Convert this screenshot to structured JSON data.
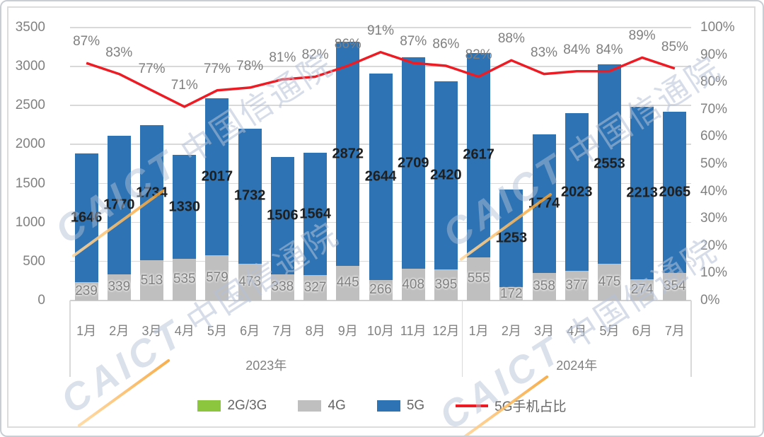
{
  "watermark": {
    "brand": "CAICT",
    "name": "中国信通院"
  },
  "legend": [
    {
      "label": "2G/3G",
      "color": "#8CC63F",
      "type": "box"
    },
    {
      "label": "4G",
      "color": "#BFBFBF",
      "type": "box"
    },
    {
      "label": "5G",
      "color": "#2E74B5",
      "type": "box"
    },
    {
      "label": "5G手机占比",
      "color": "#ED1C24",
      "type": "line"
    }
  ],
  "chart_data": {
    "type": "bar",
    "subtype": "stacked-column-with-line",
    "categories": [
      "1月",
      "2月",
      "3月",
      "4月",
      "5月",
      "6月",
      "7月",
      "8月",
      "9月",
      "10月",
      "11月",
      "12月",
      "1月",
      "2月",
      "3月",
      "4月",
      "5月",
      "6月",
      "7月"
    ],
    "category_groups": [
      {
        "label": "2023年",
        "count": 12
      },
      {
        "label": "2024年",
        "count": 7
      }
    ],
    "series": [
      {
        "name": "2G/3G",
        "color": "#8CC63F",
        "values": [
          0,
          0,
          0,
          0,
          0,
          0,
          0,
          0,
          0,
          0,
          0,
          0,
          0,
          0,
          0,
          0,
          0,
          0,
          0
        ],
        "labels_visible": false
      },
      {
        "name": "4G",
        "color": "#BFBFBF",
        "values": [
          239,
          339,
          513,
          535,
          579,
          473,
          338,
          327,
          445,
          266,
          408,
          395,
          555,
          172,
          358,
          377,
          475,
          274,
          354
        ]
      },
      {
        "name": "5G",
        "color": "#2E74B5",
        "values": [
          1646,
          1770,
          1734,
          1330,
          2017,
          1732,
          1506,
          1564,
          2872,
          2644,
          2709,
          2420,
          2617,
          1253,
          1774,
          2023,
          2553,
          2213,
          2065
        ]
      }
    ],
    "line": {
      "name": "5G手机占比",
      "color": "#ED1C24",
      "unit": "%",
      "values": [
        87,
        83,
        77,
        71,
        77,
        78,
        81,
        82,
        86,
        91,
        87,
        86,
        82,
        88,
        83,
        84,
        84,
        89,
        85
      ]
    },
    "left_axis": {
      "min": 0,
      "max": 3500,
      "step": 500,
      "tick_labels": [
        "0",
        "500",
        "1000",
        "1500",
        "2000",
        "2500",
        "3000",
        "3500"
      ]
    },
    "right_axis": {
      "min": 0,
      "max": 100,
      "step": 10,
      "tick_labels": [
        "0%",
        "10%",
        "20%",
        "30%",
        "40%",
        "50%",
        "60%",
        "70%",
        "80%",
        "90%",
        "100%"
      ]
    },
    "grid": true,
    "legend_position": "bottom"
  }
}
